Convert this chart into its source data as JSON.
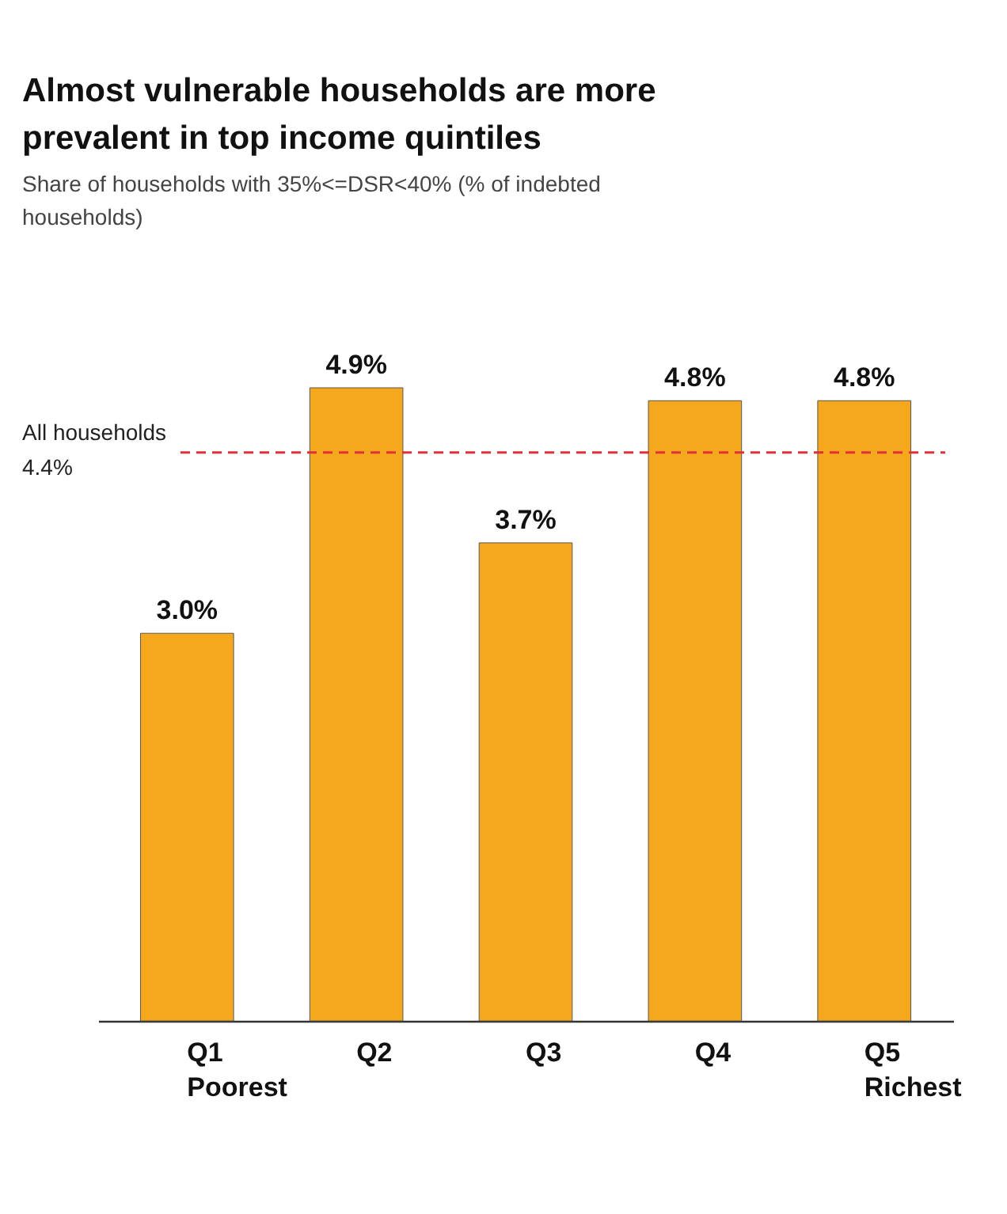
{
  "chart_data": {
    "type": "bar",
    "title": "Almost vulnerable households are more prevalent in top income quintiles",
    "subtitle": "Share of households with 35%<=DSR<40% (% of indebted households)",
    "categories": [
      "Q1\nPoorest",
      "Q2",
      "Q3",
      "Q4",
      "Q5\nRichest"
    ],
    "values": [
      3.0,
      4.9,
      3.7,
      4.8,
      4.8
    ],
    "value_labels": [
      "3.0%",
      "4.9%",
      "3.7%",
      "4.8%",
      "4.8%"
    ],
    "color": "#f5a81c",
    "ref_lines": [
      {
        "axis": "y",
        "value": 4.4,
        "label": "All households\n4.4%",
        "color": "#e0303a",
        "line_style": "dashed"
      }
    ],
    "grid": false
  }
}
